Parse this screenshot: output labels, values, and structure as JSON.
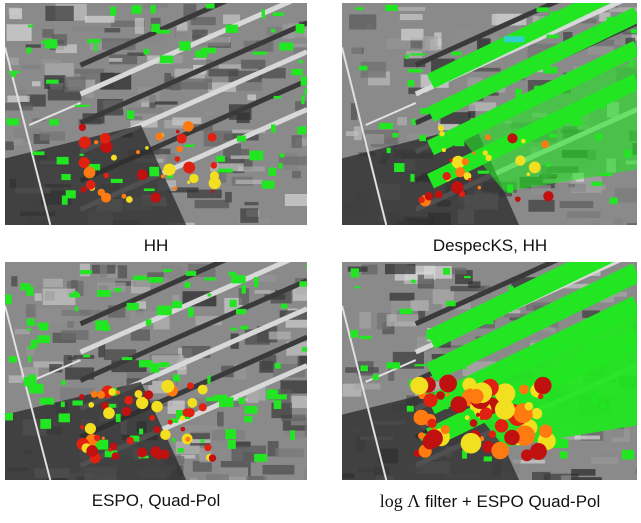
{
  "panels": [
    {
      "caption": "HH"
    },
    {
      "caption": "DespecKS, HH"
    },
    {
      "caption": "ESPO, Quad-Pol"
    },
    {
      "caption_math": "log Λ",
      "caption": "filter + ESPO Quad-Pol"
    }
  ]
}
